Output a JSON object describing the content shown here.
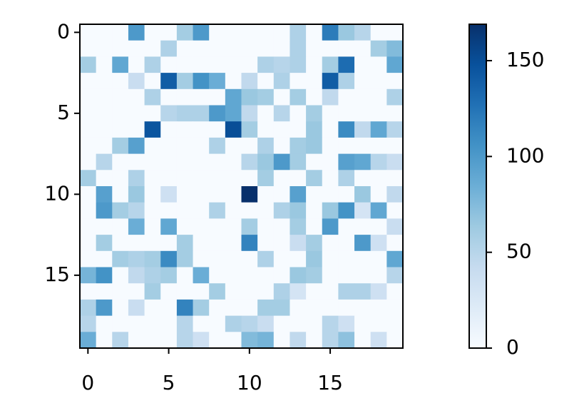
{
  "chart_data": {
    "type": "heatmap",
    "colormap": "Blues",
    "xlim": [
      -0.5,
      19.5
    ],
    "ylim": [
      19.5,
      -0.5
    ],
    "xticks": [
      0,
      5,
      10,
      15
    ],
    "yticks": [
      0,
      5,
      10,
      15
    ],
    "zlim": [
      0,
      169
    ],
    "colorbar_ticks": [
      0,
      50,
      100,
      150
    ],
    "values": [
      [
        0,
        0,
        0,
        100,
        0,
        0,
        60,
        100,
        0,
        0,
        0,
        0,
        0,
        55,
        0,
        120,
        65,
        50,
        0,
        0
      ],
      [
        0,
        0,
        0,
        0,
        0,
        55,
        0,
        0,
        0,
        0,
        0,
        0,
        0,
        55,
        0,
        0,
        0,
        0,
        60,
        75
      ],
      [
        60,
        0,
        90,
        0,
        55,
        0,
        0,
        0,
        0,
        0,
        0,
        55,
        50,
        55,
        0,
        60,
        130,
        0,
        0,
        90
      ],
      [
        0,
        0,
        0,
        40,
        0,
        140,
        60,
        105,
        85,
        0,
        45,
        0,
        55,
        0,
        0,
        140,
        55,
        0,
        0,
        0
      ],
      [
        0,
        0,
        0,
        0,
        55,
        0,
        0,
        0,
        0,
        90,
        65,
        60,
        0,
        60,
        0,
        45,
        0,
        0,
        0,
        55
      ],
      [
        0,
        0,
        0,
        0,
        0,
        50,
        55,
        55,
        100,
        90,
        45,
        0,
        50,
        0,
        60,
        0,
        0,
        0,
        0,
        0
      ],
      [
        0,
        0,
        0,
        0,
        145,
        0,
        0,
        0,
        0,
        150,
        60,
        0,
        0,
        0,
        65,
        0,
        110,
        45,
        90,
        50
      ],
      [
        0,
        0,
        60,
        95,
        0,
        0,
        0,
        0,
        55,
        0,
        0,
        55,
        0,
        60,
        65,
        0,
        0,
        0,
        0,
        0
      ],
      [
        0,
        50,
        0,
        0,
        0,
        0,
        0,
        0,
        0,
        0,
        50,
        65,
        100,
        60,
        0,
        0,
        95,
        90,
        50,
        40
      ],
      [
        60,
        0,
        0,
        55,
        0,
        0,
        0,
        0,
        0,
        0,
        0,
        60,
        0,
        0,
        60,
        0,
        55,
        0,
        0,
        0
      ],
      [
        0,
        95,
        0,
        65,
        0,
        35,
        0,
        0,
        0,
        0,
        169,
        0,
        0,
        95,
        0,
        0,
        0,
        65,
        0,
        45
      ],
      [
        0,
        100,
        60,
        50,
        0,
        0,
        0,
        0,
        55,
        0,
        0,
        0,
        55,
        65,
        0,
        65,
        105,
        30,
        90,
        0
      ],
      [
        0,
        0,
        0,
        85,
        0,
        90,
        0,
        0,
        0,
        0,
        60,
        0,
        0,
        60,
        0,
        100,
        0,
        0,
        0,
        40
      ],
      [
        0,
        60,
        0,
        0,
        0,
        0,
        60,
        0,
        0,
        0,
        115,
        0,
        0,
        40,
        60,
        0,
        0,
        100,
        35,
        0
      ],
      [
        0,
        0,
        60,
        55,
        60,
        110,
        60,
        0,
        0,
        0,
        0,
        55,
        0,
        0,
        65,
        0,
        0,
        0,
        0,
        90
      ],
      [
        80,
        105,
        0,
        45,
        55,
        60,
        0,
        85,
        0,
        0,
        0,
        0,
        0,
        65,
        60,
        0,
        0,
        0,
        0,
        50
      ],
      [
        0,
        0,
        0,
        0,
        60,
        0,
        0,
        0,
        60,
        0,
        0,
        0,
        55,
        30,
        0,
        0,
        55,
        55,
        35,
        0
      ],
      [
        55,
        100,
        0,
        40,
        0,
        0,
        115,
        60,
        0,
        0,
        0,
        60,
        60,
        0,
        0,
        0,
        0,
        0,
        0,
        0
      ],
      [
        50,
        0,
        0,
        0,
        0,
        0,
        50,
        0,
        0,
        55,
        50,
        40,
        0,
        0,
        0,
        50,
        35,
        0,
        0,
        0
      ],
      [
        85,
        0,
        50,
        0,
        0,
        0,
        50,
        35,
        0,
        0,
        75,
        80,
        0,
        45,
        0,
        50,
        70,
        0,
        35,
        0
      ]
    ]
  }
}
